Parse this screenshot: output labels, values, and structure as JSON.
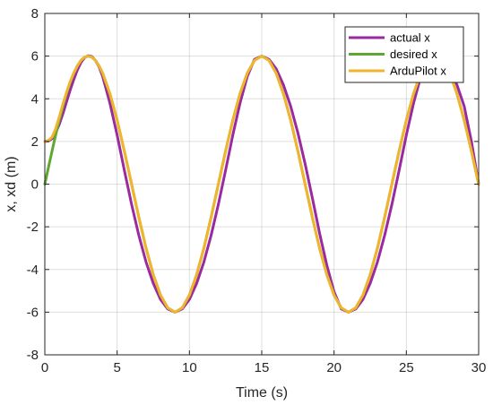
{
  "chart_data": {
    "type": "line",
    "xlabel": "Time (s)",
    "ylabel": "x, xd (m)",
    "xlim": [
      0,
      30
    ],
    "ylim": [
      -8,
      8
    ],
    "xticks": [
      0,
      5,
      10,
      15,
      20,
      25,
      30
    ],
    "yticks": [
      -8,
      -6,
      -4,
      -2,
      0,
      2,
      4,
      6,
      8
    ],
    "grid": true,
    "legend_position": "top-right",
    "series": [
      {
        "name": "actual x",
        "color": "#9a2a9f",
        "x": [
          0,
          0.25,
          0.5,
          0.75,
          1,
          1.25,
          1.5,
          1.75,
          2,
          2.25,
          2.5,
          2.75,
          3,
          3.25,
          3.5,
          3.75,
          4,
          4.5,
          5,
          5.5,
          6,
          6.5,
          7,
          7.5,
          8,
          8.5,
          9,
          9.5,
          10,
          10.5,
          11,
          11.5,
          12,
          12.5,
          13,
          13.5,
          14,
          14.5,
          15,
          15.5,
          16,
          16.5,
          17,
          17.5,
          18,
          18.5,
          19,
          19.5,
          20,
          20.5,
          21,
          21.5,
          22,
          22.5,
          23,
          23.5,
          24,
          24.5,
          25,
          25.5,
          26,
          26.5,
          27,
          27.5,
          28,
          28.5,
          29,
          29.5,
          30
        ],
        "y": [
          2.0,
          2.02,
          2.13,
          2.4,
          2.8,
          3.3,
          3.85,
          4.4,
          4.9,
          5.35,
          5.7,
          5.93,
          6.02,
          5.98,
          5.8,
          5.5,
          5.05,
          3.8,
          2.3,
          0.65,
          -0.95,
          -2.4,
          -3.65,
          -4.65,
          -5.4,
          -5.85,
          -6.0,
          -5.85,
          -5.4,
          -4.65,
          -3.65,
          -2.4,
          -0.95,
          0.65,
          2.3,
          3.8,
          5.05,
          5.85,
          6.0,
          5.85,
          5.4,
          4.65,
          3.65,
          2.4,
          0.95,
          -0.65,
          -2.3,
          -3.8,
          -5.05,
          -5.85,
          -6.0,
          -5.85,
          -5.4,
          -4.65,
          -3.65,
          -2.4,
          -0.95,
          0.65,
          2.3,
          3.8,
          5.05,
          5.85,
          6.0,
          5.85,
          5.4,
          4.65,
          3.65,
          2.0,
          0.0
        ]
      },
      {
        "name": "desired x",
        "color": "#5ea832",
        "x": [
          0,
          0.25,
          0.5,
          0.75,
          1,
          1.25,
          1.5,
          1.75,
          2,
          2.25,
          2.5,
          2.75,
          3,
          3.25,
          3.5,
          3.75,
          4,
          4.5,
          5,
          5.5,
          6,
          6.5,
          7,
          7.5,
          8,
          8.5,
          9,
          9.5,
          10,
          10.5,
          11,
          11.5,
          12,
          12.5,
          13,
          13.5,
          14,
          14.5,
          15,
          15.5,
          16,
          16.5,
          17,
          17.5,
          18,
          18.5,
          19,
          19.5,
          20,
          20.5,
          21,
          21.5,
          22,
          22.5,
          23,
          23.5,
          24,
          24.5,
          25,
          25.5,
          26,
          26.5,
          27,
          27.5,
          28,
          28.5,
          29,
          29.5,
          30
        ],
        "y": [
          0.0,
          0.78,
          1.55,
          2.3,
          3.0,
          3.65,
          4.24,
          4.76,
          5.2,
          5.54,
          5.8,
          5.95,
          6.0,
          5.95,
          5.8,
          5.54,
          5.2,
          4.24,
          3.0,
          1.55,
          0.0,
          -1.55,
          -3.0,
          -4.24,
          -5.2,
          -5.8,
          -6.0,
          -5.8,
          -5.2,
          -4.24,
          -3.0,
          -1.55,
          0.0,
          1.55,
          3.0,
          4.24,
          5.2,
          5.8,
          6.0,
          5.8,
          5.2,
          4.24,
          3.0,
          1.55,
          0.0,
          -1.55,
          -3.0,
          -4.24,
          -5.2,
          -5.8,
          -6.0,
          -5.8,
          -5.2,
          -4.24,
          -3.0,
          -1.55,
          0.0,
          1.55,
          3.0,
          4.24,
          5.2,
          5.8,
          6.0,
          5.8,
          5.2,
          4.24,
          3.0,
          1.55,
          0.0
        ]
      },
      {
        "name": "ArduPilot x",
        "color": "#f0b52d",
        "x": [
          0,
          0.25,
          0.5,
          0.75,
          1,
          1.25,
          1.5,
          1.75,
          2,
          2.25,
          2.5,
          2.75,
          3,
          3.25,
          3.5,
          3.75,
          4,
          4.5,
          5,
          5.5,
          6,
          6.5,
          7,
          7.5,
          8,
          8.5,
          9,
          9.5,
          10,
          10.5,
          11,
          11.5,
          12,
          12.5,
          13,
          13.5,
          14,
          14.5,
          15,
          15.5,
          16,
          16.5,
          17,
          17.5,
          18,
          18.5,
          19,
          19.5,
          20,
          20.5,
          21,
          21.5,
          22,
          22.5,
          23,
          23.5,
          24,
          24.5,
          25,
          25.5,
          26,
          26.5,
          27,
          27.5,
          28,
          28.5,
          29,
          29.5,
          30
        ],
        "y": [
          2.0,
          2.05,
          2.2,
          2.6,
          3.15,
          3.75,
          4.3,
          4.8,
          5.2,
          5.54,
          5.8,
          5.95,
          6.0,
          5.95,
          5.8,
          5.54,
          5.2,
          4.24,
          3.0,
          1.55,
          0.0,
          -1.55,
          -3.0,
          -4.24,
          -5.2,
          -5.8,
          -6.0,
          -5.8,
          -5.2,
          -4.24,
          -3.0,
          -1.55,
          0.0,
          1.55,
          3.0,
          4.24,
          5.2,
          5.8,
          6.0,
          5.8,
          5.2,
          4.24,
          3.0,
          1.55,
          0.0,
          -1.55,
          -3.0,
          -4.24,
          -5.2,
          -5.8,
          -6.0,
          -5.8,
          -5.2,
          -4.24,
          -3.0,
          -1.55,
          0.0,
          1.55,
          3.0,
          4.24,
          5.2,
          5.8,
          6.0,
          5.8,
          5.2,
          4.24,
          3.0,
          1.55,
          0.0
        ]
      }
    ]
  },
  "colors": {
    "axis": "#262626",
    "grid": "#262626",
    "background": "#ffffff"
  }
}
